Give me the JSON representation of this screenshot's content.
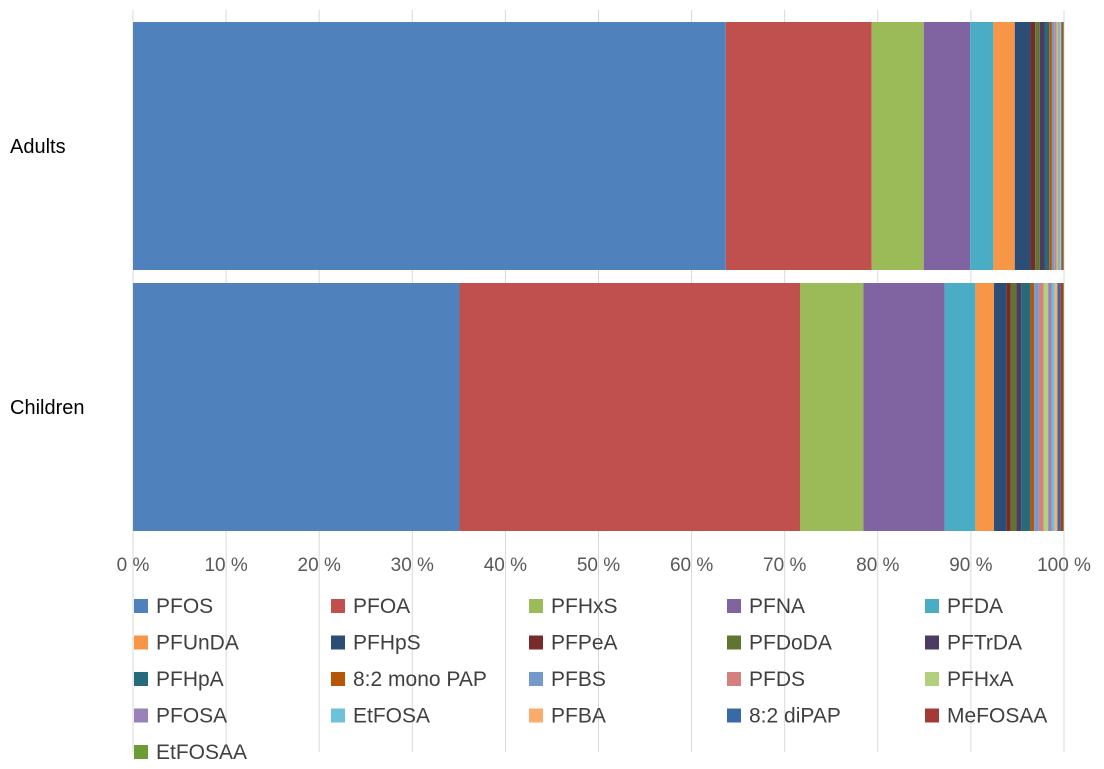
{
  "chart_data": {
    "type": "bar",
    "orientation": "horizontal",
    "stacked": "percent",
    "categories": [
      "Adults",
      "Children"
    ],
    "xlim": [
      0,
      100
    ],
    "x_ticks": [
      "0 %",
      "10 %",
      "20 %",
      "30 %",
      "40 %",
      "50 %",
      "60 %",
      "70 %",
      "80 %",
      "90 %",
      "100 %"
    ],
    "grid": "vertical",
    "legend_position": "bottom",
    "series": [
      {
        "name": "PFOS",
        "color": "#4f81bd",
        "values": [
          63.8,
          35.0
        ]
      },
      {
        "name": "PFOA",
        "color": "#c0504d",
        "values": [
          15.7,
          36.5
        ]
      },
      {
        "name": "PFHxS",
        "color": "#9bbb59",
        "values": [
          5.6,
          6.8
        ]
      },
      {
        "name": "PFNA",
        "color": "#8064a2",
        "values": [
          5.0,
          8.7
        ]
      },
      {
        "name": "PFDA",
        "color": "#4bacc6",
        "values": [
          2.5,
          3.3
        ]
      },
      {
        "name": "PFUnDA",
        "color": "#f79646",
        "values": [
          2.3,
          2.0
        ]
      },
      {
        "name": "PFHpS",
        "color": "#2c4d75",
        "values": [
          1.7,
          1.3
        ]
      },
      {
        "name": "PFPeA",
        "color": "#772c2a",
        "values": [
          0.5,
          0.5
        ]
      },
      {
        "name": "PFDoDA",
        "color": "#5f7530",
        "values": [
          0.5,
          0.6
        ]
      },
      {
        "name": "PFTrDA",
        "color": "#4d3b62",
        "values": [
          0.5,
          0.5
        ]
      },
      {
        "name": "PFHpA",
        "color": "#276a7c",
        "values": [
          0.5,
          1.0
        ]
      },
      {
        "name": "8:2 mono PAP",
        "color": "#b65708",
        "values": [
          0.3,
          0.4
        ]
      },
      {
        "name": "PFBS",
        "color": "#729aca",
        "values": [
          0.3,
          0.5
        ]
      },
      {
        "name": "PFDS",
        "color": "#d4807e",
        "values": [
          0.2,
          0.5
        ]
      },
      {
        "name": "PFHxA",
        "color": "#b3d07e",
        "values": [
          0.2,
          0.5
        ]
      },
      {
        "name": "PFOSA",
        "color": "#9983b6",
        "values": [
          0.1,
          0.4
        ]
      },
      {
        "name": "EtFOSA",
        "color": "#6cc2d8",
        "values": [
          0.1,
          0.3
        ]
      },
      {
        "name": "PFBA",
        "color": "#f9ac6d",
        "values": [
          0.1,
          0.3
        ]
      },
      {
        "name": "8:2 diPAP",
        "color": "#3a6aa5",
        "values": [
          0.1,
          0.3
        ]
      },
      {
        "name": "MeFOSAA",
        "color": "#a43a36",
        "values": [
          0.1,
          0.3
        ]
      },
      {
        "name": "EtFOSAA",
        "color": "#6e9b33",
        "values": [
          0.1,
          0.1
        ]
      }
    ]
  }
}
